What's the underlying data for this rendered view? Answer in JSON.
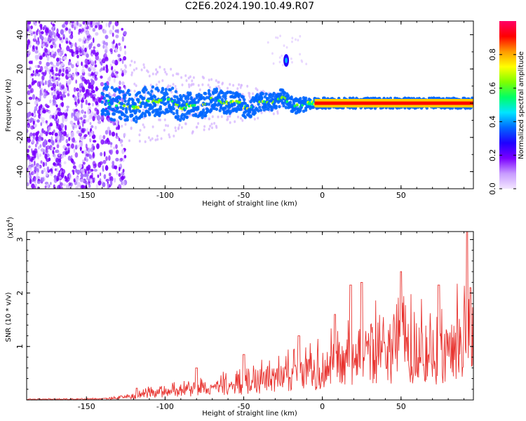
{
  "title": "C2E6.2024.190.10.49.R07",
  "colors": {
    "axis": "#000000",
    "snr_line": "#e8332f",
    "scatter_purple": "#7b00ff",
    "scatter_light": "#d7b8ff",
    "band_center": "#ff2020"
  },
  "chart_data": [
    {
      "type": "heatmap",
      "name": "spectrogram",
      "xlabel": "Height of straight line (km)",
      "ylabel": "Frequency (Hz)",
      "xlim": [
        -188,
        96
      ],
      "ylim": [
        -50,
        48
      ],
      "xticks": [
        -150,
        -100,
        -50,
        0,
        50
      ],
      "xtick_labels": [
        "-150",
        "-100",
        "-50",
        "0",
        "50"
      ],
      "yticks": [
        -40,
        -20,
        0,
        20,
        40
      ],
      "ytick_labels": [
        "-40",
        "-20",
        "0",
        "20",
        "40"
      ],
      "colorbar": {
        "label": "Normalized spectral amplitude",
        "range": [
          0,
          1
        ],
        "ticks": [
          0.0,
          0.2,
          0.4,
          0.6,
          0.8
        ],
        "tick_labels": [
          "0.0",
          "0.2",
          "0.4",
          "0.6",
          "0.8"
        ],
        "stops": [
          "#f3e6ff",
          "#c89bff",
          "#7b00ff",
          "#1f00ff",
          "#0066ff",
          "#00e5ff",
          "#00ff66",
          "#7fff00",
          "#ffff00",
          "#ff9900",
          "#ff0000",
          "#ff0066"
        ]
      },
      "features": {
        "noise_region_x": [
          -188,
          -135
        ],
        "band_center_hz": 0,
        "band_start_x": -140,
        "strong_band_from_x": -5,
        "spur": {
          "x": -23,
          "y": 25
        }
      },
      "grid": false
    },
    {
      "type": "line",
      "name": "snr",
      "xlabel": "Height of straight line (km)",
      "ylabel": "SNR (10 * v/v)",
      "scale_label": "(x10",
      "scale_exp": "4",
      "scale_close": ")",
      "xlim": [
        -188,
        96
      ],
      "ylim": [
        0,
        3.15
      ],
      "xticks": [
        -150,
        -100,
        -50,
        0,
        50
      ],
      "xtick_labels": [
        "-150",
        "-100",
        "-50",
        "0",
        "50"
      ],
      "yticks": [
        1,
        2,
        3
      ],
      "ytick_labels": [
        "1",
        "2",
        "3"
      ],
      "envelope": {
        "x": [
          -188,
          -140,
          -120,
          -110,
          -100,
          -90,
          -80,
          -70,
          -60,
          -50,
          -40,
          -30,
          -20,
          -10,
          0,
          10,
          20,
          30,
          40,
          50,
          60,
          70,
          80,
          88,
          92,
          96
        ],
        "y": [
          0.02,
          0.03,
          0.1,
          0.2,
          0.25,
          0.28,
          0.32,
          0.38,
          0.43,
          0.5,
          0.58,
          0.65,
          0.75,
          0.8,
          0.95,
          1.1,
          1.3,
          1.45,
          1.45,
          1.55,
          1.55,
          1.4,
          1.5,
          1.8,
          1.6,
          1.5
        ]
      },
      "peaks": [
        {
          "x": 92,
          "y": 3.15
        },
        {
          "x": 50,
          "y": 2.4
        },
        {
          "x": 25,
          "y": 2.2
        },
        {
          "x": 18,
          "y": 2.15
        },
        {
          "x": 74,
          "y": 2.15
        },
        {
          "x": 94,
          "y": 2.1
        },
        {
          "x": 8,
          "y": 1.6
        },
        {
          "x": -15,
          "y": 1.2
        },
        {
          "x": -50,
          "y": 0.85
        },
        {
          "x": -80,
          "y": 0.6
        },
        {
          "x": -118,
          "y": 0.22
        }
      ],
      "grid": false
    }
  ]
}
